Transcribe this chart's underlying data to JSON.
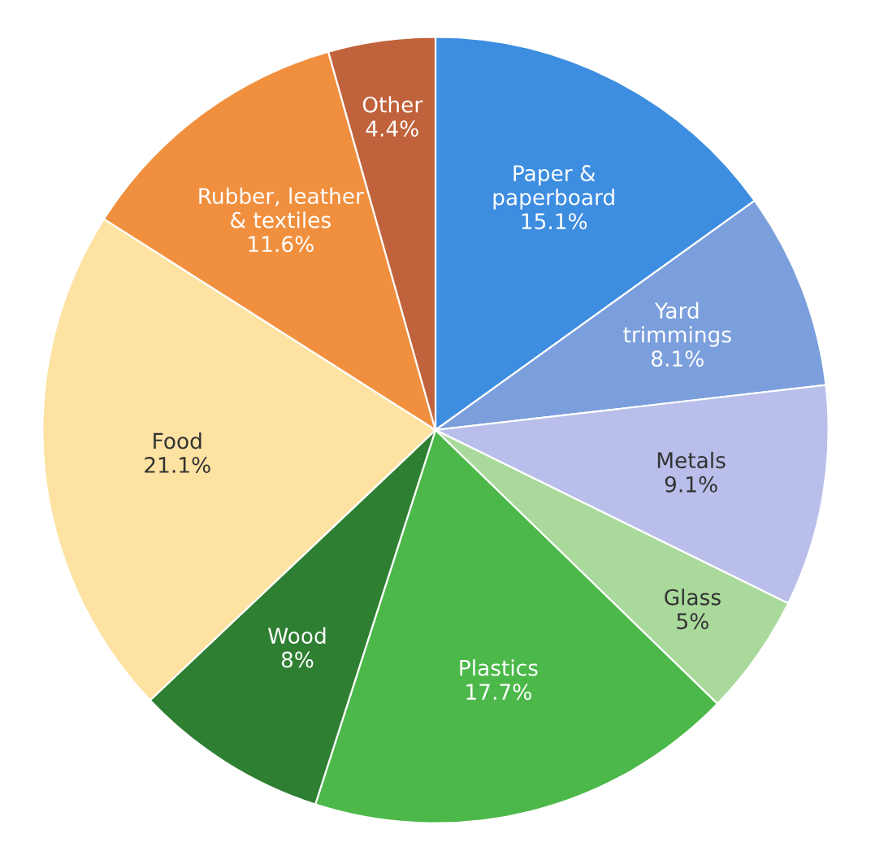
{
  "chart_data": {
    "type": "pie",
    "categories": [
      "Paper &\npaperboard",
      "Yard\ntrimmings",
      "Metals",
      "Glass",
      "Plastics",
      "Wood",
      "Food",
      "Rubber, leather\n& textiles",
      "Other"
    ],
    "values": [
      15.1,
      8.1,
      9.1,
      5,
      17.7,
      8,
      21.1,
      11.6,
      4.4
    ],
    "value_labels": [
      "15.1%",
      "8.1%",
      "9.1%",
      "5%",
      "17.7%",
      "8%",
      "21.1%",
      "11.6%",
      "4.4%"
    ],
    "colors": [
      "#3d8de0",
      "#7b9fdc",
      "#b9bfea",
      "#a9d99b",
      "#4cb84a",
      "#2f7f33",
      "#fde2a2",
      "#f0903f",
      "#c0623b"
    ]
  }
}
